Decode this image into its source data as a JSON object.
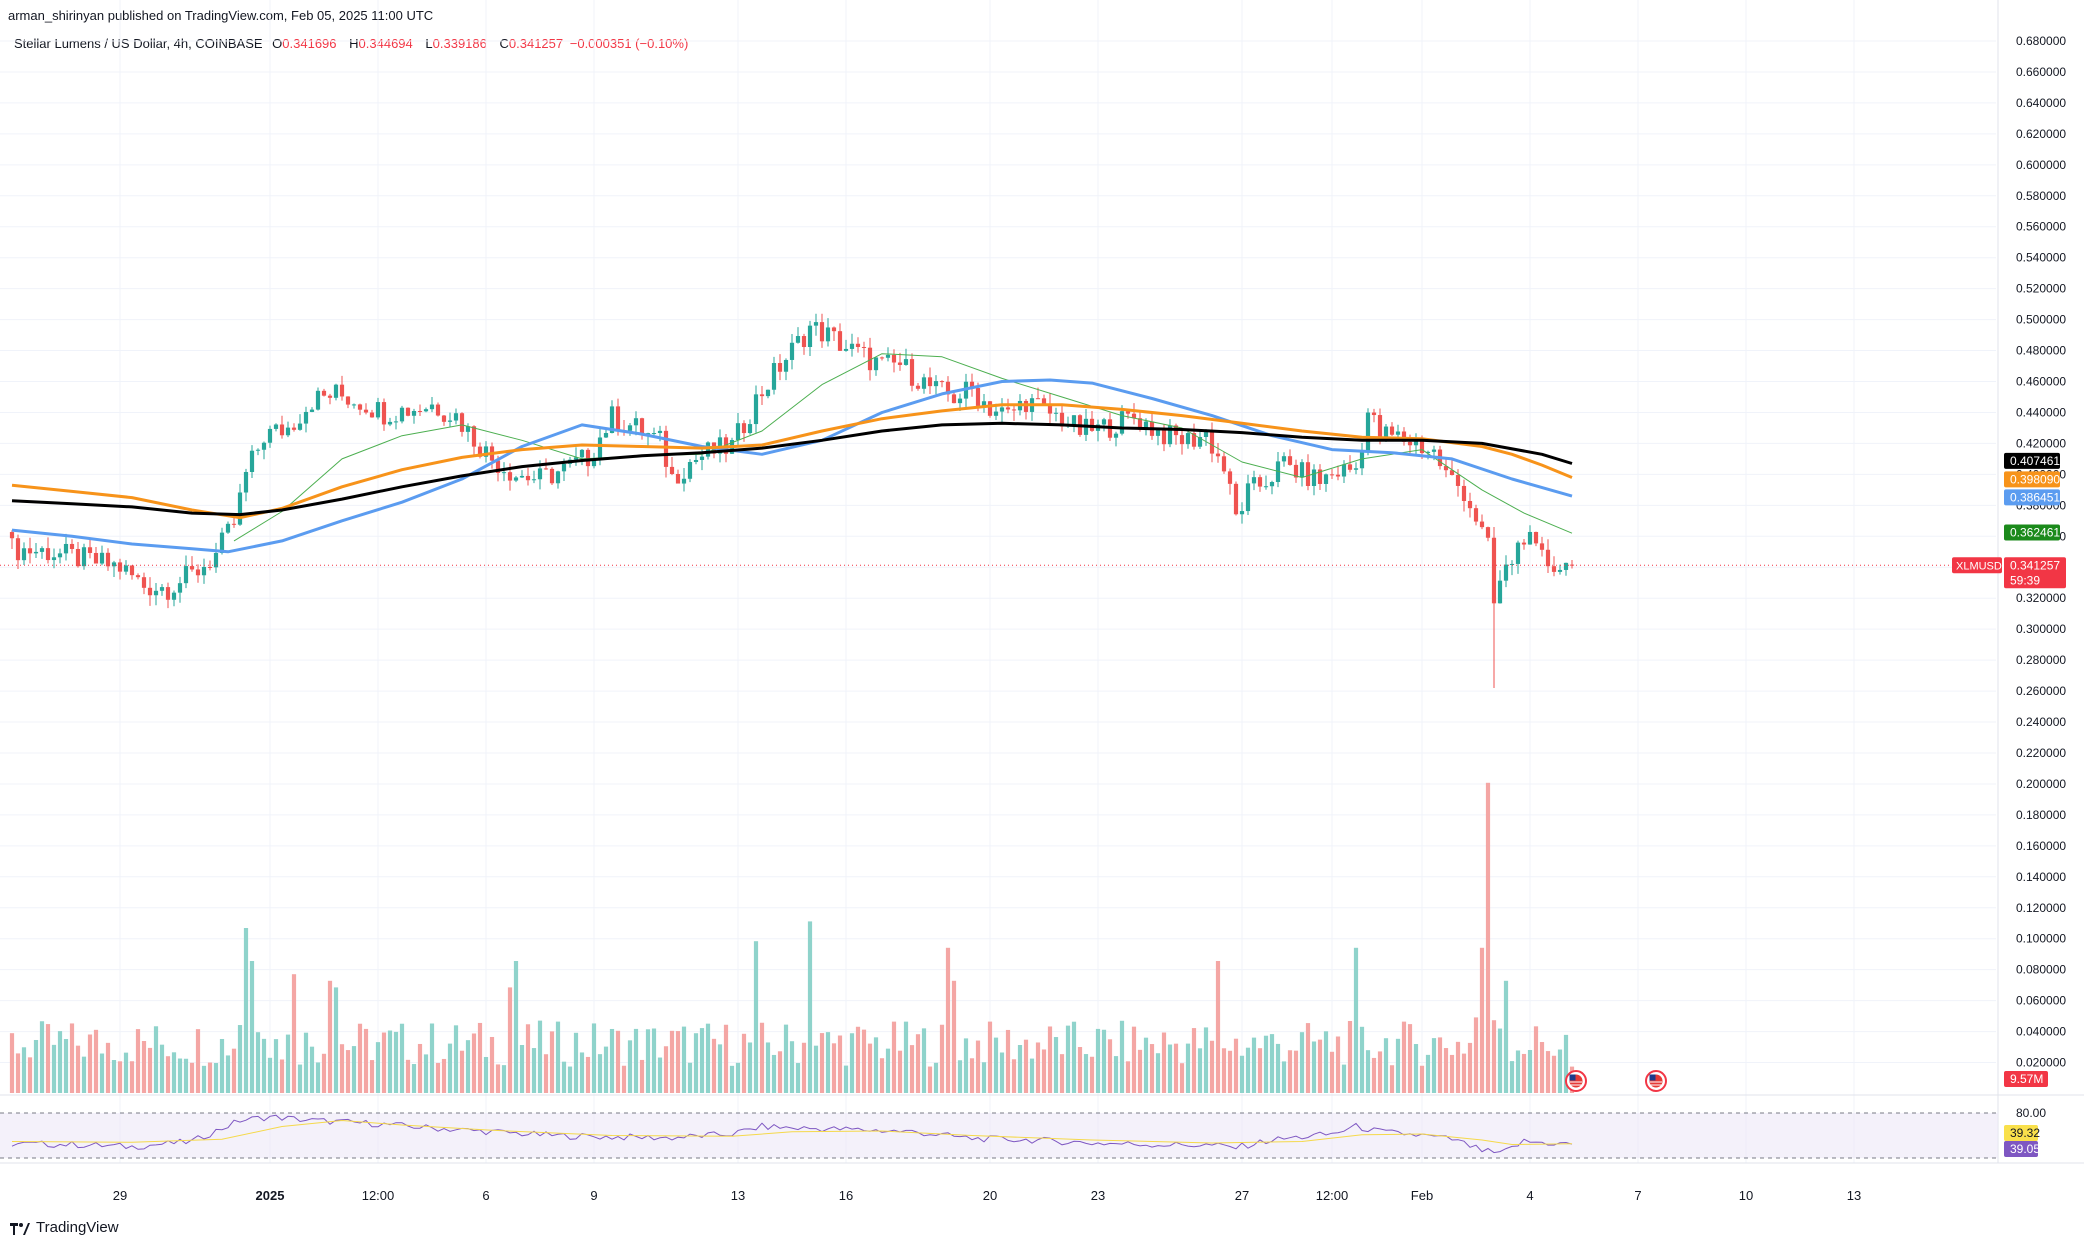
{
  "header": {
    "published_by": "arman_shirinyan published on TradingView.com, Feb 05, 2025 11:00 UTC"
  },
  "legend": {
    "symbol": "Stellar Lumens / US Dollar, 4h, COINBASE",
    "open_label": "O",
    "open": "0.341696",
    "high_label": "H",
    "high": "0.344694",
    "low_label": "L",
    "low": "0.339186",
    "close_label": "C",
    "close": "0.341257",
    "change": "−0.000351 (−0.10%)"
  },
  "brand": "TradingView",
  "colors": {
    "up": "#26a69a",
    "down": "#ef5350",
    "up_volume": "#8fd3cb",
    "down_volume": "#f4a6a4",
    "sma_short": "#4caf50",
    "sma_mid": "#5b9cf0",
    "sma_orange": "#f7931a",
    "sma_black": "#000000",
    "rsi_line": "#7e57c2",
    "rsi_ma": "#f5d94a",
    "price_line": "#f23645"
  },
  "chart_data": {
    "type": "candlestick",
    "symbol": "XLMUSD",
    "timeframe": "4h",
    "y_axis": {
      "ylim": [
        0.0,
        0.69
      ],
      "ticks": [
        "0.680000",
        "0.660000",
        "0.640000",
        "0.620000",
        "0.600000",
        "0.580000",
        "0.560000",
        "0.540000",
        "0.520000",
        "0.500000",
        "0.480000",
        "0.460000",
        "0.440000",
        "0.420000",
        "0.400000",
        "0.380000",
        "0.360000",
        "0.340000",
        "0.320000",
        "0.300000",
        "0.280000",
        "0.260000",
        "0.240000",
        "0.220000",
        "0.200000",
        "0.180000",
        "0.160000",
        "0.140000",
        "0.120000",
        "0.100000",
        "0.080000",
        "0.060000",
        "0.040000",
        "0.020000"
      ]
    },
    "x_axis": {
      "labels": [
        {
          "bar": 18,
          "text": "29",
          "bold": false
        },
        {
          "bar": 43,
          "text": "2025",
          "bold": true
        },
        {
          "bar": 61,
          "text": "12:00",
          "bold": false
        },
        {
          "bar": 79,
          "text": "6",
          "bold": false
        },
        {
          "bar": 97,
          "text": "9",
          "bold": false
        },
        {
          "bar": 121,
          "text": "13",
          "bold": false
        },
        {
          "bar": 139,
          "text": "16",
          "bold": false
        },
        {
          "bar": 163,
          "text": "20",
          "bold": false
        },
        {
          "bar": 181,
          "text": "23",
          "bold": false
        },
        {
          "bar": 205,
          "text": "27",
          "bold": false
        },
        {
          "bar": 220,
          "text": "12:00",
          "bold": false
        },
        {
          "bar": 235,
          "text": "Feb",
          "bold": false
        },
        {
          "bar": 253,
          "text": "4",
          "bold": false
        },
        {
          "bar": 271,
          "text": "7",
          "bold": false
        },
        {
          "bar": 289,
          "text": "10",
          "bold": false
        },
        {
          "bar": 307,
          "text": "13",
          "bold": false
        }
      ]
    },
    "price_anchors": [
      [
        0,
        0.352
      ],
      [
        6,
        0.35
      ],
      [
        12,
        0.345
      ],
      [
        18,
        0.34
      ],
      [
        22,
        0.328
      ],
      [
        26,
        0.327
      ],
      [
        30,
        0.335
      ],
      [
        34,
        0.348
      ],
      [
        37,
        0.368
      ],
      [
        39,
        0.4
      ],
      [
        42,
        0.425
      ],
      [
        46,
        0.43
      ],
      [
        50,
        0.448
      ],
      [
        54,
        0.452
      ],
      [
        58,
        0.447
      ],
      [
        62,
        0.44
      ],
      [
        66,
        0.442
      ],
      [
        70,
        0.445
      ],
      [
        74,
        0.438
      ],
      [
        77,
        0.423
      ],
      [
        80,
        0.41
      ],
      [
        84,
        0.4
      ],
      [
        88,
        0.397
      ],
      [
        92,
        0.403
      ],
      [
        96,
        0.411
      ],
      [
        100,
        0.437
      ],
      [
        104,
        0.43
      ],
      [
        108,
        0.421
      ],
      [
        110,
        0.398
      ],
      [
        113,
        0.408
      ],
      [
        116,
        0.414
      ],
      [
        120,
        0.418
      ],
      [
        124,
        0.448
      ],
      [
        127,
        0.465
      ],
      [
        130,
        0.48
      ],
      [
        133,
        0.495
      ],
      [
        136,
        0.49
      ],
      [
        139,
        0.482
      ],
      [
        142,
        0.476
      ],
      [
        145,
        0.47
      ],
      [
        148,
        0.471
      ],
      [
        151,
        0.462
      ],
      [
        154,
        0.454
      ],
      [
        157,
        0.45
      ],
      [
        160,
        0.455
      ],
      [
        163,
        0.443
      ],
      [
        166,
        0.438
      ],
      [
        169,
        0.448
      ],
      [
        172,
        0.441
      ],
      [
        175,
        0.436
      ],
      [
        178,
        0.428
      ],
      [
        181,
        0.429
      ],
      [
        184,
        0.433
      ],
      [
        187,
        0.437
      ],
      [
        190,
        0.43
      ],
      [
        193,
        0.424
      ],
      [
        196,
        0.422
      ],
      [
        199,
        0.426
      ],
      [
        202,
        0.404
      ],
      [
        204,
        0.372
      ],
      [
        206,
        0.388
      ],
      [
        209,
        0.396
      ],
      [
        212,
        0.407
      ],
      [
        215,
        0.4
      ],
      [
        218,
        0.396
      ],
      [
        221,
        0.402
      ],
      [
        224,
        0.404
      ],
      [
        226,
        0.44
      ],
      [
        228,
        0.426
      ],
      [
        231,
        0.424
      ],
      [
        234,
        0.42
      ],
      [
        237,
        0.414
      ],
      [
        239,
        0.4
      ],
      [
        242,
        0.389
      ],
      [
        244,
        0.372
      ],
      [
        246,
        0.352
      ],
      [
        247,
        0.316
      ],
      [
        248,
        0.33
      ],
      [
        250,
        0.345
      ],
      [
        252,
        0.362
      ],
      [
        254,
        0.348
      ],
      [
        256,
        0.343
      ],
      [
        258,
        0.341
      ],
      [
        260,
        0.341
      ]
    ],
    "ohlc_last": {
      "open": 0.341696,
      "high": 0.344694,
      "low": 0.339186,
      "close": 0.341257
    },
    "spike_low": {
      "bar": 247,
      "low": 0.262
    },
    "moving_averages": [
      {
        "name": "MA green",
        "color": "#4caf50",
        "last": 0.362461,
        "points": [
          [
            37,
            0.357
          ],
          [
            45,
            0.376
          ],
          [
            55,
            0.41
          ],
          [
            65,
            0.425
          ],
          [
            75,
            0.432
          ],
          [
            85,
            0.422
          ],
          [
            95,
            0.41
          ],
          [
            105,
            0.412
          ],
          [
            115,
            0.413
          ],
          [
            125,
            0.428
          ],
          [
            135,
            0.458
          ],
          [
            145,
            0.478
          ],
          [
            155,
            0.476
          ],
          [
            165,
            0.462
          ],
          [
            175,
            0.45
          ],
          [
            185,
            0.438
          ],
          [
            195,
            0.43
          ],
          [
            205,
            0.408
          ],
          [
            215,
            0.398
          ],
          [
            225,
            0.41
          ],
          [
            235,
            0.416
          ],
          [
            245,
            0.39
          ],
          [
            252,
            0.375
          ],
          [
            260,
            0.362
          ]
        ]
      },
      {
        "name": "MA blue",
        "color": "#5b9cf0",
        "last": 0.386451,
        "points": [
          [
            0,
            0.364
          ],
          [
            10,
            0.36
          ],
          [
            20,
            0.355
          ],
          [
            30,
            0.352
          ],
          [
            36,
            0.35
          ],
          [
            45,
            0.357
          ],
          [
            55,
            0.37
          ],
          [
            65,
            0.382
          ],
          [
            75,
            0.397
          ],
          [
            85,
            0.418
          ],
          [
            95,
            0.432
          ],
          [
            105,
            0.426
          ],
          [
            115,
            0.418
          ],
          [
            125,
            0.413
          ],
          [
            135,
            0.422
          ],
          [
            145,
            0.44
          ],
          [
            155,
            0.452
          ],
          [
            165,
            0.46
          ],
          [
            173,
            0.461
          ],
          [
            180,
            0.459
          ],
          [
            190,
            0.449
          ],
          [
            200,
            0.438
          ],
          [
            210,
            0.425
          ],
          [
            220,
            0.416
          ],
          [
            230,
            0.414
          ],
          [
            240,
            0.41
          ],
          [
            250,
            0.397
          ],
          [
            260,
            0.386
          ]
        ]
      },
      {
        "name": "MA orange",
        "color": "#f7931a",
        "last": 0.39809,
        "points": [
          [
            0,
            0.393
          ],
          [
            10,
            0.389
          ],
          [
            20,
            0.385
          ],
          [
            30,
            0.377
          ],
          [
            38,
            0.372
          ],
          [
            45,
            0.378
          ],
          [
            55,
            0.392
          ],
          [
            65,
            0.403
          ],
          [
            75,
            0.411
          ],
          [
            85,
            0.416
          ],
          [
            95,
            0.419
          ],
          [
            105,
            0.418
          ],
          [
            115,
            0.417
          ],
          [
            125,
            0.419
          ],
          [
            135,
            0.428
          ],
          [
            145,
            0.436
          ],
          [
            155,
            0.441
          ],
          [
            165,
            0.445
          ],
          [
            175,
            0.445
          ],
          [
            185,
            0.442
          ],
          [
            195,
            0.438
          ],
          [
            205,
            0.433
          ],
          [
            215,
            0.428
          ],
          [
            225,
            0.424
          ],
          [
            235,
            0.423
          ],
          [
            245,
            0.418
          ],
          [
            250,
            0.413
          ],
          [
            255,
            0.406
          ],
          [
            260,
            0.398
          ]
        ]
      },
      {
        "name": "MA black",
        "color": "#000000",
        "last": 0.407461,
        "points": [
          [
            0,
            0.383
          ],
          [
            10,
            0.381
          ],
          [
            20,
            0.379
          ],
          [
            30,
            0.375
          ],
          [
            38,
            0.374
          ],
          [
            45,
            0.377
          ],
          [
            55,
            0.384
          ],
          [
            65,
            0.392
          ],
          [
            75,
            0.399
          ],
          [
            85,
            0.405
          ],
          [
            95,
            0.409
          ],
          [
            105,
            0.412
          ],
          [
            115,
            0.414
          ],
          [
            125,
            0.417
          ],
          [
            135,
            0.422
          ],
          [
            145,
            0.428
          ],
          [
            155,
            0.432
          ],
          [
            165,
            0.433
          ],
          [
            175,
            0.432
          ],
          [
            185,
            0.43
          ],
          [
            195,
            0.429
          ],
          [
            205,
            0.427
          ],
          [
            215,
            0.424
          ],
          [
            225,
            0.422
          ],
          [
            235,
            0.422
          ],
          [
            245,
            0.42
          ],
          [
            255,
            0.413
          ],
          [
            260,
            0.407
          ]
        ]
      }
    ],
    "volume": {
      "unit": "M",
      "last_label": "9.57M",
      "spikes": [
        [
          39,
          25
        ],
        [
          40,
          20
        ],
        [
          47,
          18
        ],
        [
          53,
          17
        ],
        [
          54,
          16
        ],
        [
          83,
          16
        ],
        [
          84,
          20
        ],
        [
          124,
          23
        ],
        [
          133,
          26
        ],
        [
          156,
          22
        ],
        [
          157,
          17
        ],
        [
          201,
          20
        ],
        [
          224,
          22
        ],
        [
          245,
          22
        ],
        [
          246,
          47
        ],
        [
          249,
          17
        ]
      ]
    },
    "rsi": {
      "upper_level": "80.00",
      "rsi_value": "39.05",
      "ma_value": "39.32",
      "anchors": [
        [
          0,
          39
        ],
        [
          10,
          38
        ],
        [
          20,
          35
        ],
        [
          30,
          42
        ],
        [
          38,
          70
        ],
        [
          43,
          75
        ],
        [
          50,
          70
        ],
        [
          60,
          66
        ],
        [
          70,
          60
        ],
        [
          80,
          55
        ],
        [
          90,
          50
        ],
        [
          100,
          48
        ],
        [
          110,
          47
        ],
        [
          120,
          52
        ],
        [
          125,
          62
        ],
        [
          130,
          60
        ],
        [
          140,
          58
        ],
        [
          150,
          55
        ],
        [
          160,
          46
        ],
        [
          170,
          44
        ],
        [
          180,
          40
        ],
        [
          190,
          38
        ],
        [
          200,
          37
        ],
        [
          204,
          34
        ],
        [
          210,
          44
        ],
        [
          220,
          52
        ],
        [
          224,
          62
        ],
        [
          228,
          55
        ],
        [
          235,
          50
        ],
        [
          240,
          45
        ],
        [
          245,
          30
        ],
        [
          248,
          25
        ],
        [
          252,
          42
        ],
        [
          258,
          39
        ],
        [
          260,
          39
        ]
      ],
      "ma_anchors": [
        [
          0,
          42
        ],
        [
          20,
          41
        ],
        [
          35,
          45
        ],
        [
          45,
          62
        ],
        [
          55,
          70
        ],
        [
          65,
          64
        ],
        [
          80,
          57
        ],
        [
          100,
          50
        ],
        [
          120,
          49
        ],
        [
          130,
          55
        ],
        [
          145,
          56
        ],
        [
          160,
          50
        ],
        [
          180,
          44
        ],
        [
          200,
          40
        ],
        [
          215,
          42
        ],
        [
          225,
          51
        ],
        [
          235,
          52
        ],
        [
          245,
          44
        ],
        [
          250,
          38
        ],
        [
          260,
          39
        ]
      ]
    },
    "axis_tags": [
      {
        "value": 0.407461,
        "text": "0.407461",
        "bg": "#000000",
        "fg": "#ffffff"
      },
      {
        "value": 0.39809,
        "text": "0.398090",
        "bg": "#f7931a",
        "fg": "#ffffff"
      },
      {
        "value": 0.386451,
        "text": "0.386451",
        "bg": "#5b9cf0",
        "fg": "#ffffff"
      },
      {
        "value": 0.362461,
        "text": "0.362461",
        "bg": "#1b8a1b",
        "fg": "#ffffff"
      }
    ],
    "price_tag": {
      "value": 0.341257,
      "text": "0.341257",
      "countdown": "59:39",
      "symbol": "XLMUSD"
    }
  }
}
